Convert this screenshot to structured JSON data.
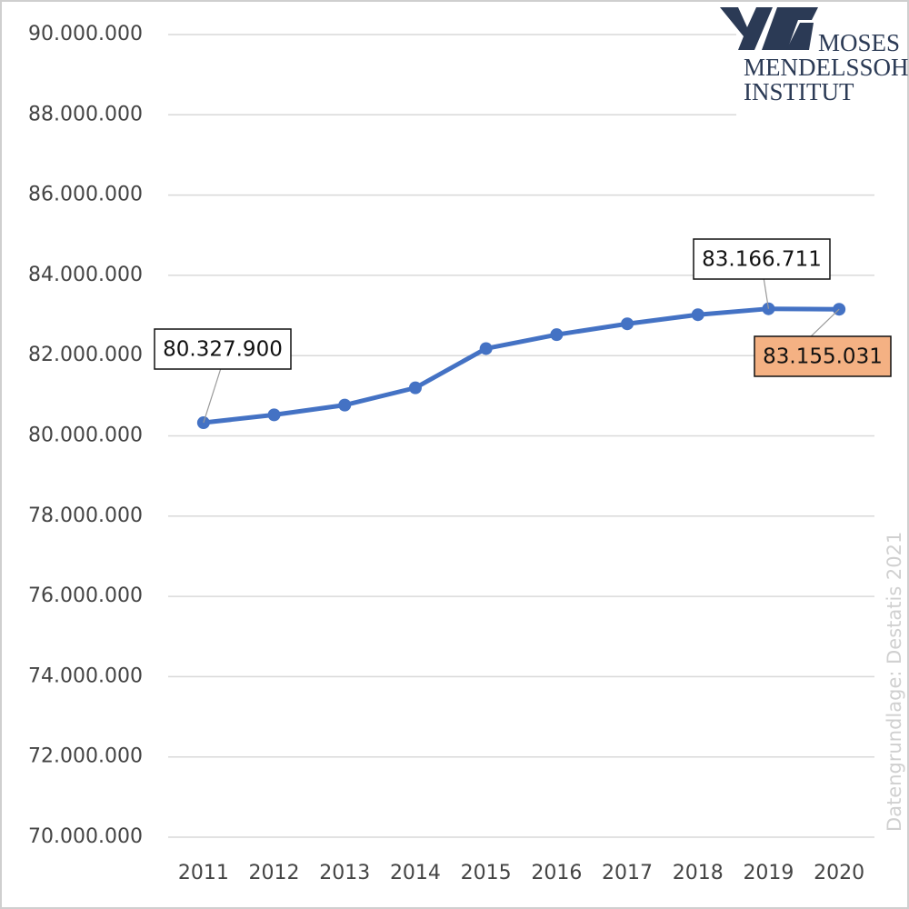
{
  "chart_data": {
    "type": "line",
    "categories": [
      "2011",
      "2012",
      "2013",
      "2014",
      "2015",
      "2016",
      "2017",
      "2018",
      "2019",
      "2020"
    ],
    "series": [
      {
        "color": "#4472c4",
        "values": [
          80327900,
          80523746,
          80767463,
          81197537,
          82175684,
          82521653,
          82792351,
          83019213,
          83166711,
          83155031
        ],
        "value_labels": [
          "80.327.900",
          null,
          null,
          null,
          null,
          null,
          null,
          null,
          "83.166.711",
          "83.155.031"
        ]
      }
    ],
    "highlight_color": "#f4b183",
    "ylim": [
      70000000,
      90000000
    ],
    "yticks": [
      {
        "value": 70000000,
        "label": "70.000.000"
      },
      {
        "value": 72000000,
        "label": "72.000.000"
      },
      {
        "value": 74000000,
        "label": "74.000.000"
      },
      {
        "value": 76000000,
        "label": "76.000.000"
      },
      {
        "value": 78000000,
        "label": "78.000.000"
      },
      {
        "value": 80000000,
        "label": "80.000.000"
      },
      {
        "value": 82000000,
        "label": "82.000.000"
      },
      {
        "value": 84000000,
        "label": "84.000.000"
      },
      {
        "value": 86000000,
        "label": "86.000.000"
      },
      {
        "value": 88000000,
        "label": "88.000.000"
      },
      {
        "value": 90000000,
        "label": "90.000.000"
      }
    ],
    "grid": true,
    "source": "Datengrundlage: Destatis 2021",
    "logo": {
      "line1": "MOSES",
      "line2": "MENDELSSOHN",
      "line3": "INSTITUT"
    }
  }
}
